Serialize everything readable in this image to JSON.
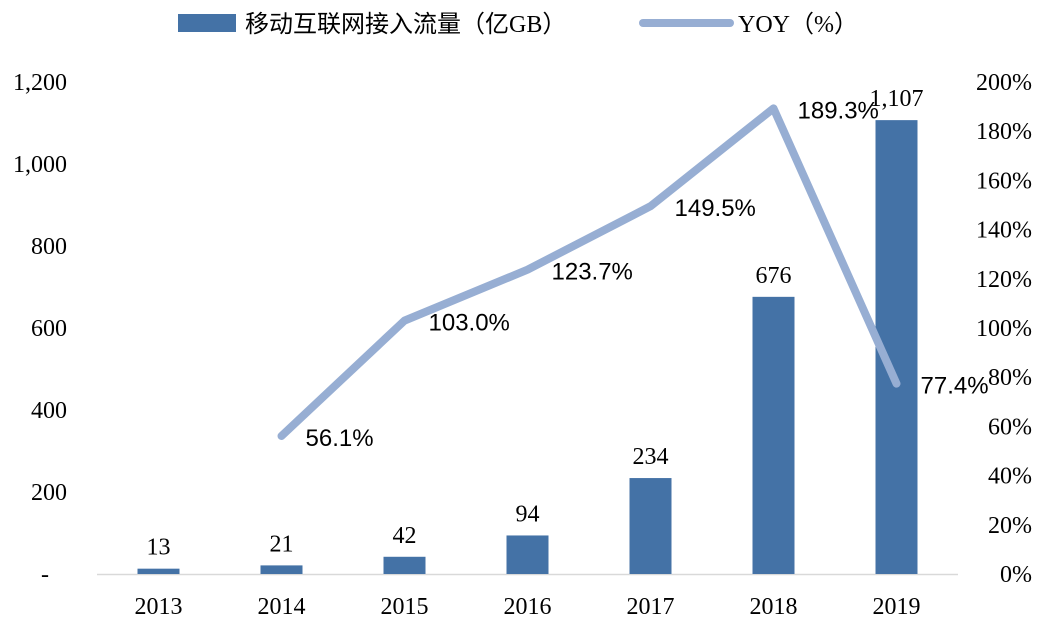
{
  "chart_data": {
    "type": "bar+line",
    "title": "",
    "categories": [
      "2013",
      "2014",
      "2015",
      "2016",
      "2017",
      "2018",
      "2019"
    ],
    "series": [
      {
        "name": "移动互联网接入流量（亿GB）",
        "type": "bar",
        "axis": "left",
        "color": "#4472a6",
        "values": [
          13,
          21,
          42,
          94,
          234,
          676,
          1107
        ],
        "labels": [
          "13",
          "21",
          "42",
          "94",
          "234",
          "676",
          "1,107"
        ]
      },
      {
        "name": "YOY（%）",
        "type": "line",
        "axis": "right",
        "color": "#97aed3",
        "values": [
          null,
          56.1,
          103.0,
          123.7,
          149.5,
          189.3,
          77.4
        ],
        "labels": [
          "",
          "56.1%",
          "103.0%",
          "123.7%",
          "149.5%",
          "189.3%",
          "77.4%"
        ]
      }
    ],
    "y_left": {
      "ylim": [
        0,
        1200
      ],
      "ticks": [
        0,
        200,
        400,
        600,
        800,
        1000,
        1200
      ],
      "tick_labels": [
        "-",
        "200",
        "400",
        "600",
        "800",
        "1,000",
        "1,200"
      ]
    },
    "y_right": {
      "ylim": [
        0,
        200
      ],
      "ticks": [
        0,
        20,
        40,
        60,
        80,
        100,
        120,
        140,
        160,
        180,
        200
      ],
      "tick_labels": [
        "0%",
        "20%",
        "40%",
        "60%",
        "80%",
        "100%",
        "120%",
        "140%",
        "160%",
        "180%",
        "200%"
      ]
    },
    "legend": "top",
    "grid": false
  }
}
